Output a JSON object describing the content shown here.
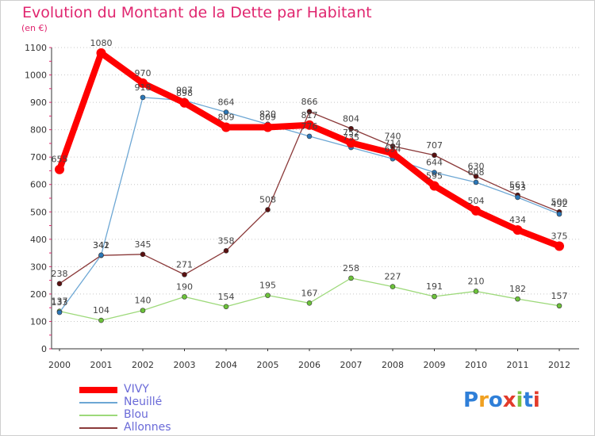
{
  "title": "Evolution du Montant de la Dette par Habitant",
  "subtitle": "(en €)",
  "logo": {
    "text": "Proxiti",
    "colors": [
      "#2f7fd8",
      "#f0a020",
      "#2f7fd8",
      "#e23b2b",
      "#7cc142",
      "#2f7fd8",
      "#e23b2b"
    ]
  },
  "chart_data": {
    "type": "line",
    "title": "Evolution du Montant de la Dette par Habitant",
    "ylabel": "(en €)",
    "xlabel": "",
    "ylim": [
      0,
      1100
    ],
    "yticks": [
      0,
      100,
      200,
      300,
      400,
      500,
      600,
      700,
      800,
      900,
      1000,
      1100
    ],
    "x": [
      "2000",
      "2001",
      "2002",
      "2003",
      "2004",
      "2005",
      "2006",
      "2007",
      "2008",
      "2009",
      "2010",
      "2011",
      "2012"
    ],
    "grid": "horizontal dotted",
    "legend": "bottom-left",
    "series": [
      {
        "name": "VIVY",
        "color": "#ff0000",
        "values": [
          655,
          1080,
          970,
          898,
          809,
          809,
          817,
          752,
          714,
          595,
          504,
          434,
          375
        ],
        "labels": [
          "655",
          "1080",
          "970",
          "898",
          "809",
          "809",
          "817",
          "752",
          "714",
          "595",
          "504",
          "434",
          "375"
        ]
      },
      {
        "name": "Neuillé",
        "color": "#6da7d4",
        "values": [
          133,
          342,
          918,
          907,
          864,
          820,
          776,
          735,
          694,
          644,
          608,
          553,
          492
        ],
        "labels": [
          "133",
          "342",
          "918",
          "907",
          "864",
          "820",
          "776",
          "735",
          "694",
          "644",
          "608",
          "553",
          "492"
        ]
      },
      {
        "name": "Blou",
        "color": "#9dd97a",
        "values": [
          137,
          104,
          140,
          190,
          154,
          195,
          167,
          258,
          227,
          191,
          210,
          182,
          157
        ],
        "labels": [
          "137",
          "104",
          "140",
          "190",
          "154",
          "195",
          "167",
          "258",
          "227",
          "191",
          "210",
          "182",
          "157"
        ]
      },
      {
        "name": "Allonnes",
        "color": "#8b3a3a",
        "values": [
          238,
          341,
          345,
          271,
          358,
          508,
          866,
          804,
          740,
          707,
          630,
          561,
          500
        ],
        "labels": [
          "238",
          "341",
          "345",
          "271",
          "358",
          "508",
          "866",
          "804",
          "740",
          "707",
          "630",
          "561",
          "500"
        ]
      }
    ]
  }
}
